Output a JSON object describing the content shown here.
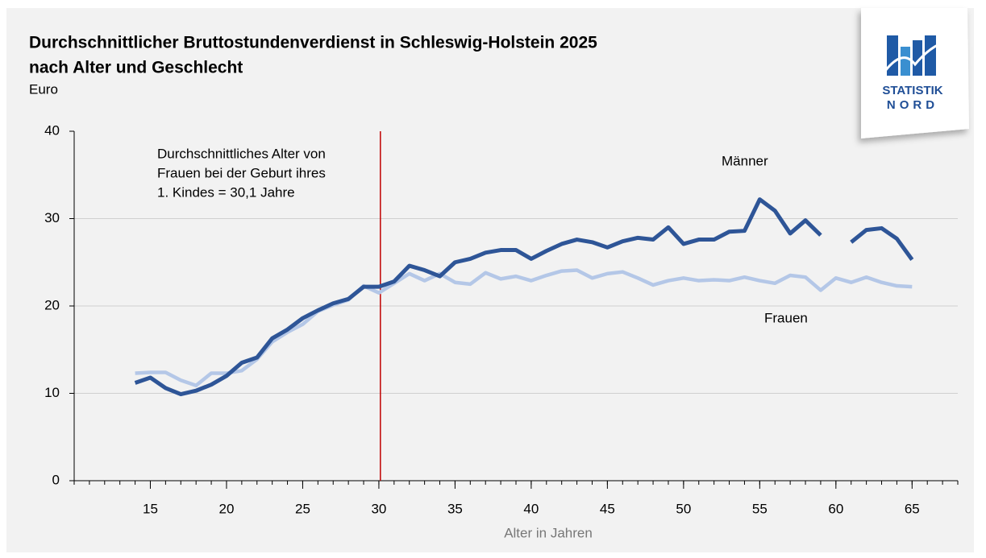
{
  "chart_data": {
    "type": "line",
    "title": [
      "Durchschnittlicher Bruttostundenverdienst in Schleswig-Holstein 2025",
      "nach Alter und Geschlecht"
    ],
    "subtitle": "Euro",
    "x_label": "Alter in Jahren",
    "x": [
      14,
      15,
      16,
      17,
      18,
      19,
      20,
      21,
      22,
      23,
      24,
      25,
      26,
      27,
      28,
      29,
      30,
      31,
      32,
      33,
      34,
      35,
      36,
      37,
      38,
      39,
      40,
      41,
      42,
      43,
      44,
      45,
      46,
      47,
      48,
      49,
      50,
      51,
      52,
      53,
      54,
      55,
      56,
      57,
      58,
      59,
      60,
      61,
      62,
      63,
      64,
      65
    ],
    "series": [
      {
        "name": "Frauen",
        "color": "#b4c7e7",
        "values": [
          12.3,
          12.4,
          12.4,
          11.5,
          10.9,
          12.3,
          12.3,
          12.6,
          13.9,
          15.9,
          17.0,
          17.9,
          19.4,
          20.1,
          20.7,
          22.3,
          21.5,
          22.6,
          23.7,
          22.9,
          23.7,
          22.7,
          22.5,
          23.8,
          23.1,
          23.4,
          22.9,
          23.5,
          24.0,
          24.1,
          23.2,
          23.7,
          23.9,
          23.2,
          22.4,
          22.9,
          23.2,
          22.9,
          23.0,
          22.9,
          23.3,
          22.9,
          22.6,
          23.5,
          23.3,
          21.8,
          23.2,
          22.7,
          23.3,
          22.7,
          22.3,
          22.2
        ]
      },
      {
        "name": "Männer",
        "color": "#2e5597",
        "values": [
          11.2,
          11.8,
          10.6,
          9.9,
          10.3,
          11.0,
          12.0,
          13.5,
          14.1,
          16.3,
          17.3,
          18.6,
          19.5,
          20.3,
          20.8,
          22.2,
          22.2,
          22.8,
          24.6,
          24.1,
          23.4,
          25.0,
          25.4,
          26.1,
          26.4,
          26.4,
          25.4,
          26.3,
          27.1,
          27.6,
          27.3,
          26.7,
          27.4,
          27.8,
          27.6,
          29.0,
          27.1,
          27.6,
          27.6,
          28.5,
          28.6,
          32.2,
          30.9,
          28.3,
          29.8,
          28.1,
          null,
          27.3,
          28.7,
          28.9,
          27.7,
          25.3
        ]
      }
    ],
    "xlim": [
      10,
      68
    ],
    "xticks": [
      15,
      20,
      25,
      30,
      35,
      40,
      45,
      50,
      55,
      60,
      65
    ],
    "ylim": [
      0,
      40
    ],
    "yticks": [
      0,
      10,
      20,
      30,
      40
    ],
    "grid": true,
    "vline": {
      "x": 30.1,
      "color": "#c00000",
      "label": [
        "Durchschnittliches Alter von",
        "Frauen bei der Geburt ihres",
        "1. Kindes = 30,1 Jahre"
      ]
    }
  },
  "logo": {
    "line1": "STATISTIK",
    "line2": "NORD"
  }
}
